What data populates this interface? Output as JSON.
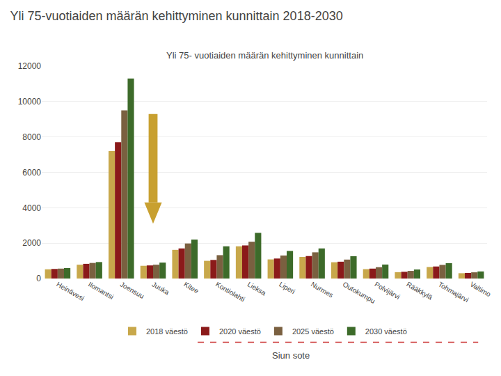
{
  "chart_data": {
    "type": "bar",
    "title": "Yli 75-vuotiaiden määrän kehittyminen kunnittain 2018-2030",
    "subtitle": "Yli 75- vuotiaiden määrän kehittyminen kunnittain",
    "categories": [
      "Heinävesi",
      "Ilomantsi",
      "Joensuu",
      "Juuka",
      "Kitee",
      "Kontiolahti",
      "Lieksa",
      "Liperi",
      "Nurmes",
      "Outokumpu",
      "Polvijärvi",
      "Rääkkylä",
      "Tohmajärvi",
      "Valtimo"
    ],
    "series": [
      {
        "name": "2018 väestö",
        "color": "#C8A84B",
        "values": [
          520,
          780,
          7200,
          720,
          1620,
          1000,
          1820,
          1080,
          1220,
          920,
          530,
          360,
          650,
          300
        ]
      },
      {
        "name": "2020 väestö",
        "color": "#8B1A1A",
        "values": [
          540,
          830,
          7700,
          740,
          1700,
          1050,
          1870,
          1130,
          1270,
          950,
          560,
          380,
          680,
          315
        ]
      },
      {
        "name": "2025 väestö",
        "color": "#7A6040",
        "values": [
          560,
          880,
          9500,
          780,
          1980,
          1320,
          2080,
          1300,
          1480,
          1070,
          640,
          430,
          770,
          350
        ]
      },
      {
        "name": "2030 väestö",
        "color": "#3D6B2A",
        "values": [
          590,
          930,
          11300,
          900,
          2200,
          1820,
          2580,
          1560,
          1700,
          1260,
          790,
          510,
          870,
          400
        ]
      }
    ],
    "ylim": [
      0,
      12000
    ],
    "yticks": [
      0,
      2000,
      4000,
      6000,
      8000,
      10000,
      12000
    ],
    "grid": true,
    "legend": "bottom",
    "annotations": [
      "Siun sote"
    ]
  }
}
